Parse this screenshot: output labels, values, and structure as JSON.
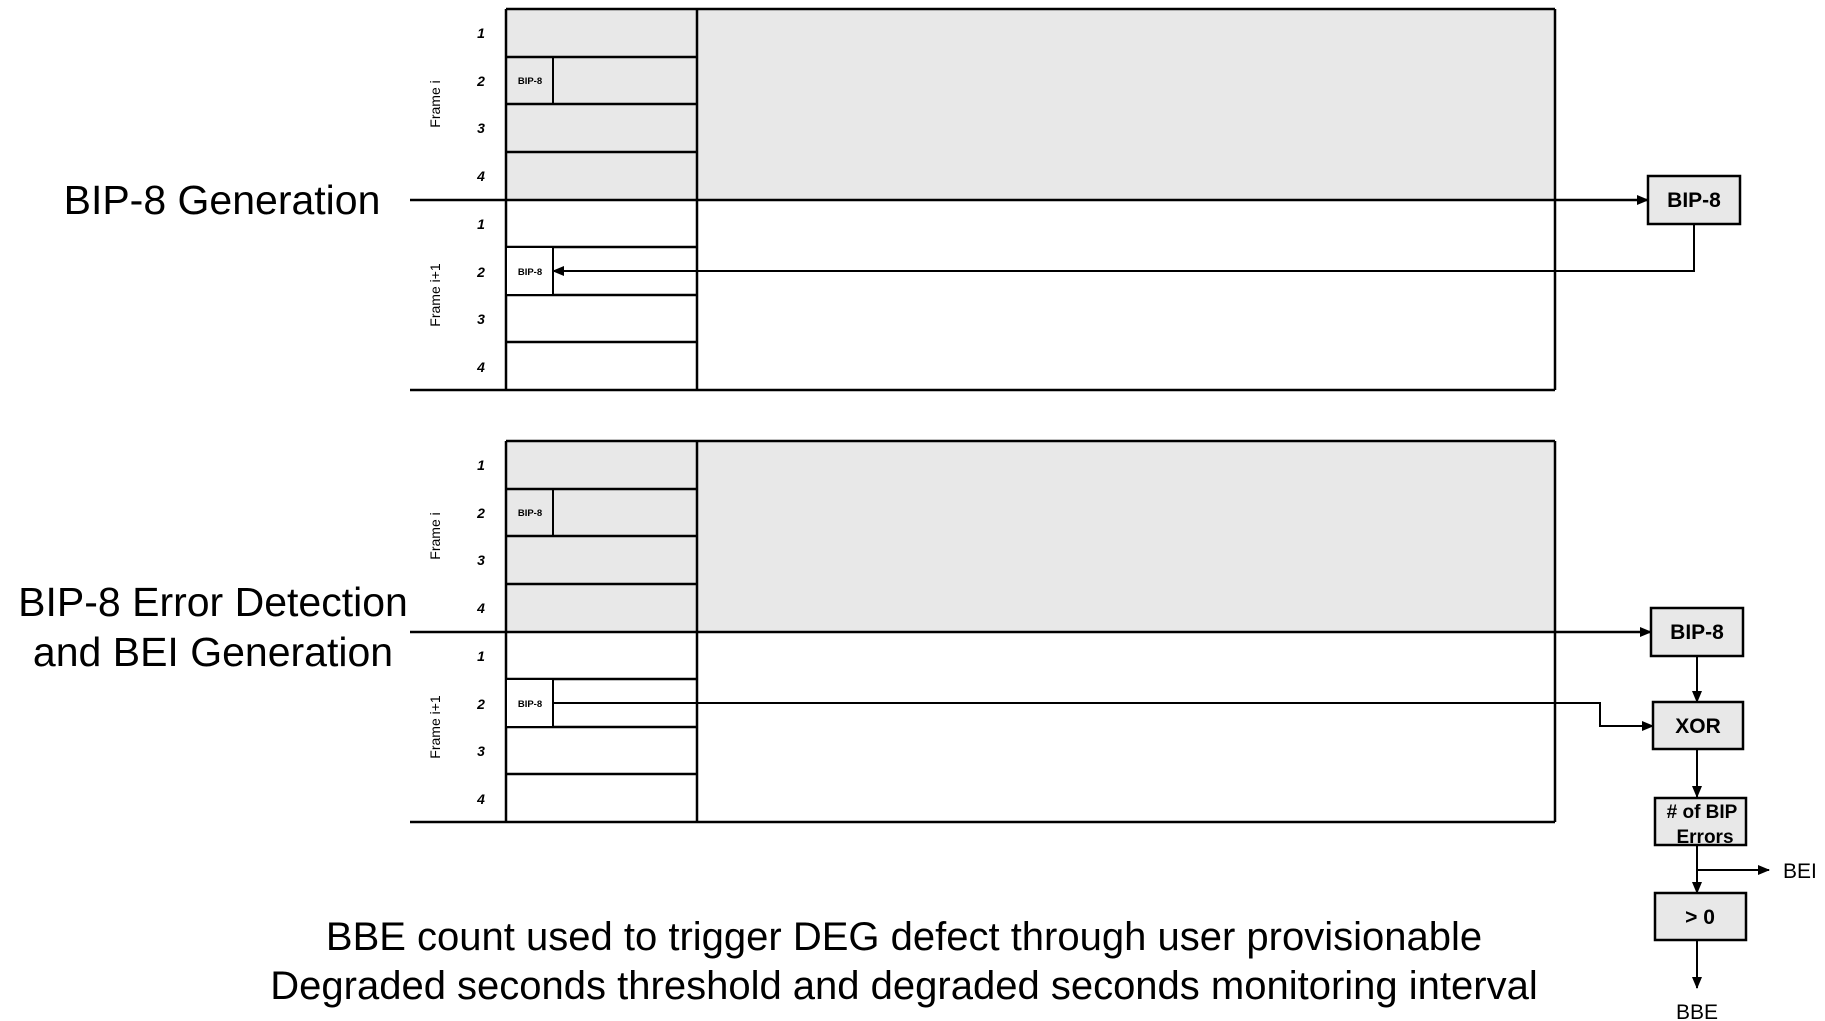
{
  "labels": {
    "generation_title": "BIP-8 Generation",
    "detection_title_line1": "BIP-8 Error Detection",
    "detection_title_line2": "and BEI Generation",
    "caption_line1": "BBE count used to trigger DEG defect through user provisionable",
    "caption_line2": "Degraded seconds threshold and degraded seconds monitoring interval"
  },
  "frames": {
    "frame_i": "Frame i",
    "frame_i_plus_1": "Frame i+1",
    "row_numbers": [
      "1",
      "2",
      "3",
      "4"
    ],
    "bip_cell": "BIP-8"
  },
  "blocks": {
    "bip8": "BIP-8",
    "xor": "XOR",
    "errors_line1": "# of BIP",
    "errors_line2": "Errors",
    "greater_zero": "> 0"
  },
  "outputs": {
    "bei": "BEI",
    "bbe": "BBE"
  },
  "colors": {
    "shaded_region": "#e8e8e8",
    "lines": "#000000",
    "background": "#ffffff"
  }
}
